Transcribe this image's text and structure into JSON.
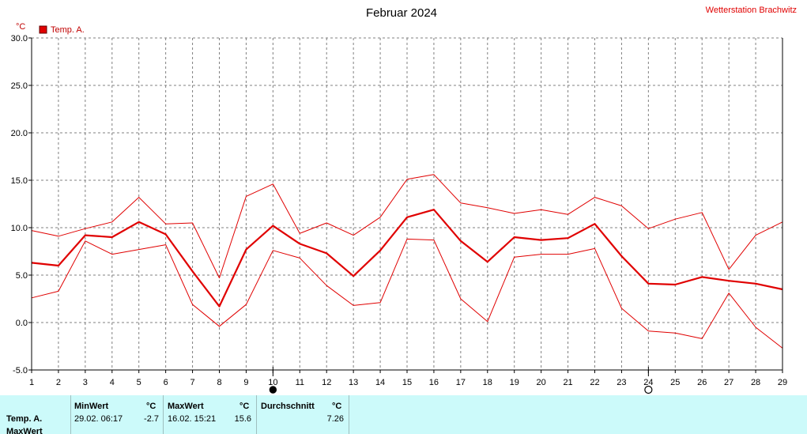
{
  "chart_data": {
    "type": "line",
    "title": "Februar 2024",
    "station": "Wetterstation Brachwitz",
    "yunit": "°C",
    "legend": "Temp. A.",
    "legend_placement": "top-left",
    "x": [
      1,
      2,
      3,
      4,
      5,
      6,
      7,
      8,
      9,
      10,
      11,
      12,
      13,
      14,
      15,
      16,
      17,
      18,
      19,
      20,
      21,
      22,
      23,
      24,
      25,
      26,
      27,
      28,
      29
    ],
    "ylim": [
      -5,
      30
    ],
    "yticks": [
      "30.0",
      "25.0",
      "20.0",
      "15.0",
      "10.0",
      "5.0",
      "0.0",
      "-5.0"
    ],
    "grid": true,
    "series": [
      {
        "kind": "max",
        "values": [
          9.7,
          9.1,
          9.9,
          10.6,
          13.2,
          10.4,
          10.5,
          4.7,
          13.3,
          14.6,
          9.4,
          10.5,
          9.2,
          11.1,
          15.1,
          15.6,
          12.6,
          12.1,
          11.5,
          11.9,
          11.4,
          13.2,
          12.3,
          9.9,
          10.9,
          11.6,
          5.6,
          9.2,
          10.6
        ]
      },
      {
        "kind": "mean",
        "values": [
          6.3,
          6.0,
          9.2,
          9.0,
          10.6,
          9.3,
          5.4,
          1.7,
          7.7,
          10.2,
          8.3,
          7.3,
          4.9,
          7.6,
          11.1,
          11.9,
          8.6,
          6.4,
          9.0,
          8.7,
          8.9,
          10.4,
          7.0,
          4.1,
          4.0,
          4.8,
          4.4,
          4.1,
          3.5
        ]
      },
      {
        "kind": "min",
        "values": [
          2.6,
          3.3,
          8.6,
          7.2,
          7.7,
          8.2,
          1.9,
          -0.4,
          1.9,
          7.6,
          6.8,
          3.9,
          1.8,
          2.1,
          8.8,
          8.7,
          2.5,
          0.1,
          6.9,
          7.2,
          7.2,
          7.8,
          1.5,
          -0.9,
          -1.1,
          -1.7,
          3.1,
          -0.5,
          -2.7
        ]
      }
    ],
    "moon_phases": [
      {
        "day": 10,
        "phase": "new-moon-icon"
      },
      {
        "day": 24,
        "phase": "full-moon-icon"
      }
    ],
    "colors": {
      "line": "#e00000",
      "grid": "#808080",
      "axis": "#000000",
      "stats_bg": "#ccfafa"
    }
  },
  "stats": {
    "row1_label": "Temp. A.",
    "row2_label": "MaxWert",
    "min_header": "MinWert",
    "min_unit": "°C",
    "min_datetime": "29.02.  06:17",
    "min_value": "-2.7",
    "max_header": "MaxWert",
    "max_unit": "°C",
    "max_datetime": "16.02.  15:21",
    "max_value": "15.6",
    "avg_header": "Durchschnitt",
    "avg_unit": "°C",
    "avg_value": "7.26"
  }
}
